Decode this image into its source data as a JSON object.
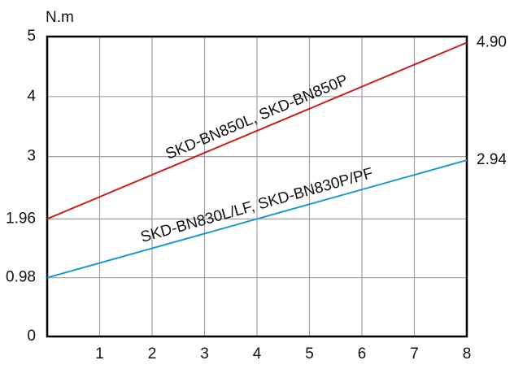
{
  "chart_data": {
    "type": "line",
    "y_label": "N.m",
    "x": [
      0,
      8
    ],
    "series": [
      {
        "name": "SKD-BN850L, SKD-BN850P",
        "color": "#c8201c",
        "values": [
          1.96,
          4.9
        ]
      },
      {
        "name": "SKD-BN830L/LF, SKD-BN830P/PF",
        "color": "#1b9ad2",
        "values": [
          0.98,
          2.94
        ]
      }
    ],
    "xlim": [
      0,
      8
    ],
    "xticks": [
      1,
      2,
      3,
      4,
      5,
      6,
      7,
      8
    ],
    "ylim": [
      0,
      5
    ],
    "yticks": [
      0,
      0.98,
      1.96,
      3,
      4,
      5
    ],
    "y2lim": [
      0,
      5
    ],
    "y2ticks": [
      {
        "value": 2.94,
        "label": "2.94"
      },
      {
        "value": 4.9,
        "label": "4.90"
      }
    ],
    "grid": true
  }
}
